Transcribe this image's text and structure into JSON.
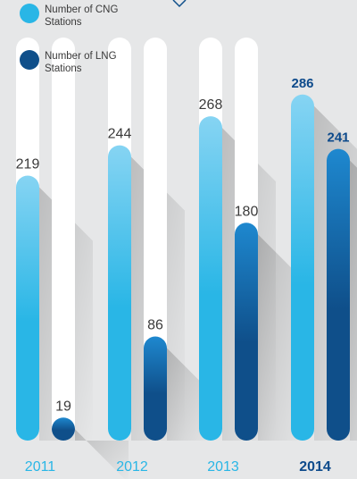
{
  "chart_data": {
    "type": "bar",
    "categories": [
      "2011",
      "2012",
      "2013",
      "2014"
    ],
    "highlight_category": "2014",
    "series": [
      {
        "name": "Number of CNG Stations",
        "values": [
          219,
          244,
          268,
          286
        ],
        "color": "#29b6e6",
        "color_light": "#86d4f3"
      },
      {
        "name": "Number of LNG Stations",
        "values": [
          19,
          86,
          180,
          241
        ],
        "color": "#0f4f8a",
        "color_light": "#1e88cf"
      }
    ],
    "value_labels": {
      "cng": [
        "219",
        "244",
        "268",
        "286"
      ],
      "lng": [
        "19",
        "86",
        "180",
        "241"
      ]
    },
    "ylim": [
      0,
      300
    ],
    "grid": false,
    "legend_position": "top-left",
    "colors": {
      "background": "#e6e7e8",
      "track": "#ffffff",
      "year_label": "#29b6e6",
      "highlight_text": "#0d4a8b",
      "value_text": "#3a3a3a"
    }
  }
}
